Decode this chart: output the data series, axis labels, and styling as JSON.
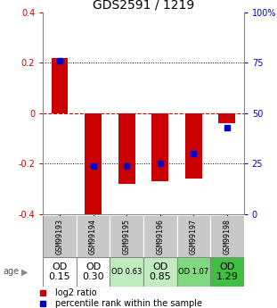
{
  "title": "GDS2591 / 1219",
  "samples": [
    "GSM99193",
    "GSM99194",
    "GSM99195",
    "GSM99196",
    "GSM99197",
    "GSM99198"
  ],
  "bar_heights": [
    0.22,
    -0.43,
    -0.28,
    -0.27,
    -0.26,
    -0.04
  ],
  "percentile_ranks": [
    76,
    24,
    24,
    25,
    30,
    43
  ],
  "ylim": [
    -0.4,
    0.4
  ],
  "right_ylim": [
    0,
    100
  ],
  "right_yticks": [
    0,
    25,
    50,
    75,
    100
  ],
  "right_yticklabels": [
    "0",
    "25",
    "50",
    "75",
    "100%"
  ],
  "left_yticks": [
    -0.4,
    -0.2,
    0.0,
    0.2,
    0.4
  ],
  "left_yticklabels": [
    "-0.4",
    "-0.2",
    "0",
    "0.2",
    "0.4"
  ],
  "age_labels": [
    "OD\n0.15",
    "OD\n0.30",
    "OD 0.63",
    "OD\n0.85",
    "OD 1.07",
    "OD\n1.29"
  ],
  "age_bg_colors": [
    "#ffffff",
    "#ffffff",
    "#c0ecc0",
    "#c0ecc0",
    "#80d880",
    "#40c040"
  ],
  "age_fontsize_small": [
    false,
    false,
    true,
    false,
    true,
    false
  ],
  "sample_bg_color": "#c8c8c8",
  "bar_color": "#cc0000",
  "dot_color": "#0000cc",
  "left_tick_color": "#cc0000",
  "right_tick_color": "#0000cc",
  "zero_line_color": "#cc0000",
  "grid_color": "#000000",
  "title_fontsize": 10,
  "tick_fontsize": 7,
  "sample_fontsize": 6,
  "legend_fontsize": 7,
  "age_label": "age",
  "legend_line1": "log2 ratio",
  "legend_line2": "percentile rank within the sample"
}
